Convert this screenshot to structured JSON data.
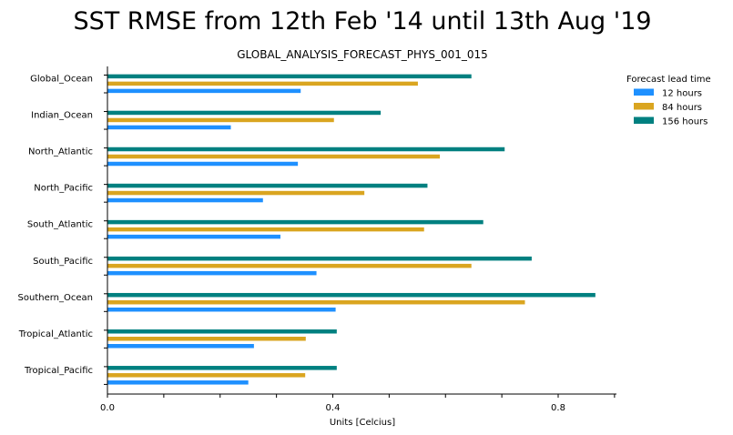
{
  "chart_data": {
    "type": "bar",
    "orientation": "horizontal",
    "title": "SST RMSE from 12th Feb '14 until 13th Aug '19",
    "subtitle": "GLOBAL_ANALYSIS_FORECAST_PHYS_001_015",
    "xlabel": "Units [Celcius]",
    "ylabel": "",
    "xlim": [
      0,
      0.91
    ],
    "xticks": [
      "0.0",
      "0.4",
      "0.8"
    ],
    "categories": [
      "Global_Ocean",
      "Indian_Ocean",
      "North_Atlantic",
      "North_Pacific",
      "South_Atlantic",
      "South_Pacific",
      "Southern_Ocean",
      "Tropical_Atlantic",
      "Tropical_Pacific"
    ],
    "legend": {
      "title": "Forecast lead time",
      "position": "top-right"
    },
    "grid": false,
    "series": [
      {
        "name": "12 hours",
        "color": "#1e90ff",
        "values": [
          0.343,
          0.219,
          0.338,
          0.276,
          0.307,
          0.371,
          0.405,
          0.26,
          0.25
        ]
      },
      {
        "name": "84 hours",
        "color": "#daa520",
        "values": [
          0.551,
          0.402,
          0.59,
          0.456,
          0.562,
          0.646,
          0.741,
          0.352,
          0.351
        ]
      },
      {
        "name": "156 hours",
        "color": "#008080",
        "values": [
          0.646,
          0.485,
          0.705,
          0.568,
          0.667,
          0.753,
          0.866,
          0.407,
          0.407
        ]
      }
    ]
  }
}
